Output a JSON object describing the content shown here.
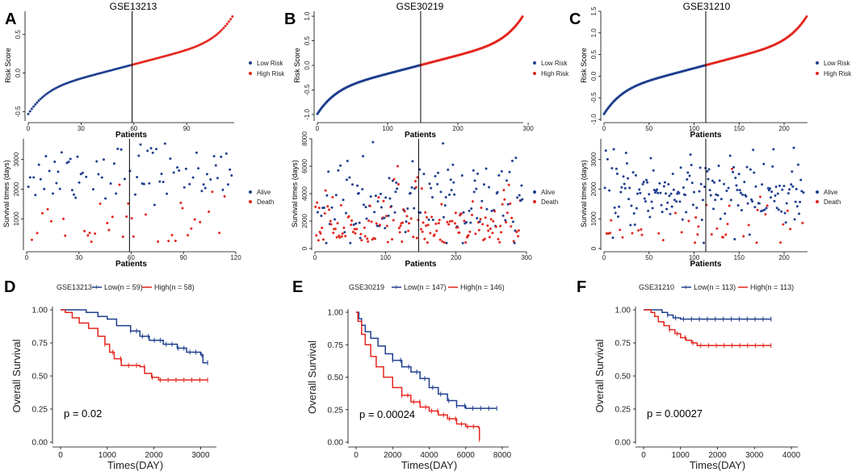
{
  "colors": {
    "low": "#1f3f8f",
    "high": "#e3261e",
    "line": "#000000"
  },
  "chart_data": [
    {
      "id": "A",
      "type": "scatter",
      "panel_label": "A",
      "title": "GSE13213",
      "xlabel": "Patients",
      "ylabel": "Risk Score",
      "n": 117,
      "cut": 59,
      "xlim": [
        0,
        117
      ],
      "ylim": [
        -0.6,
        0.8
      ],
      "xticks": [
        "0",
        "30",
        "60",
        "90"
      ],
      "yticks": [
        "-0.5",
        "0.0",
        "0.5"
      ],
      "legend": [
        "Low Risk",
        "High Risk"
      ]
    },
    {
      "id": "B",
      "type": "scatter",
      "panel_label": "B",
      "title": "GSE30219",
      "xlabel": "Patients",
      "ylabel": "Risk Score",
      "n": 293,
      "cut": 147,
      "xlim": [
        0,
        293
      ],
      "ylim": [
        -1.1,
        1.1
      ],
      "xticks": [
        "0",
        "100",
        "200",
        "300"
      ],
      "yticks": [
        "-1.0",
        "-0.5",
        "0.0",
        "0.5",
        "1.0"
      ],
      "legend": [
        "Low Risk",
        "High Risk"
      ]
    },
    {
      "id": "C",
      "type": "scatter",
      "panel_label": "C",
      "title": "GSE31210",
      "xlabel": "Patients",
      "ylabel": "Risk Score",
      "n": 226,
      "cut": 113,
      "xlim": [
        0,
        226
      ],
      "ylim": [
        -1.0,
        1.5
      ],
      "xticks": [
        "0",
        "50",
        "100",
        "150",
        "200"
      ],
      "yticks": [
        "-1.0",
        "-0.5",
        "0.0",
        "0.5",
        "1.0",
        "1.5"
      ],
      "legend": [
        "Low Risk",
        "High Risk"
      ]
    },
    {
      "id": "A2",
      "type": "scatter",
      "xlabel": "Patients",
      "ylabel": "Survival times (days)",
      "n": 117,
      "cut": 59,
      "xlim": [
        0,
        120
      ],
      "ylim": [
        0,
        3700
      ],
      "xticks": [
        "0",
        "30",
        "60",
        "90",
        "120"
      ],
      "yticks": [
        "1000",
        "2000",
        "3000"
      ],
      "legend": [
        "Alive",
        "Death"
      ],
      "alive_mean": 2600,
      "alive_sd": 500,
      "death_frac": 0.35
    },
    {
      "id": "B2",
      "type": "scatter",
      "xlabel": "Patients",
      "ylabel": "Survival times (days)",
      "n": 293,
      "cut": 147,
      "xlim": [
        0,
        300
      ],
      "ylim": [
        0,
        8000
      ],
      "xticks": [
        "0",
        "100",
        "200",
        "300"
      ],
      "yticks": [
        "0",
        "2000",
        "4000",
        "6000",
        "8000"
      ],
      "legend": [
        "Alive",
        "Death"
      ],
      "alive_mean": 3500,
      "alive_sd": 1500,
      "death_frac": 0.55
    },
    {
      "id": "C2",
      "type": "scatter",
      "xlabel": "Patients",
      "ylabel": "Survival times (days)",
      "n": 226,
      "cut": 113,
      "xlim": [
        0,
        226
      ],
      "ylim": [
        0,
        3700
      ],
      "xticks": [
        "0",
        "50",
        "100",
        "150",
        "200"
      ],
      "yticks": [
        "0",
        "1000",
        "2000",
        "3000"
      ],
      "legend": [
        "Alive",
        "Death"
      ],
      "alive_mean": 1900,
      "alive_sd": 600,
      "death_frac": 0.15
    },
    {
      "id": "D",
      "type": "line",
      "panel_label": "D",
      "title": "GSE13213",
      "legend": [
        "Low(n = 59)",
        "High(n = 58)"
      ],
      "xlabel": "Times(DAY)",
      "ylabel": "Overall Survival",
      "xlim": [
        0,
        3200
      ],
      "ylim": [
        0,
        1
      ],
      "xticks": [
        "0",
        "1000",
        "2000",
        "3000"
      ],
      "yticks": [
        "0.00",
        "0.25",
        "0.50",
        "0.75",
        "1.00"
      ],
      "pvalue": "p = 0.02",
      "series": [
        {
          "name": "Low",
          "points": [
            [
              0,
              1
            ],
            [
              300,
              1
            ],
            [
              550,
              0.98
            ],
            [
              800,
              0.95
            ],
            [
              1000,
              0.93
            ],
            [
              1200,
              0.88
            ],
            [
              1500,
              0.84
            ],
            [
              1700,
              0.8
            ],
            [
              1900,
              0.77
            ],
            [
              2200,
              0.74
            ],
            [
              2500,
              0.71
            ],
            [
              2700,
              0.68
            ],
            [
              3000,
              0.66
            ],
            [
              3050,
              0.6
            ],
            [
              3150,
              0.6
            ]
          ]
        },
        {
          "name": "High",
          "points": [
            [
              0,
              1
            ],
            [
              100,
              0.98
            ],
            [
              250,
              0.94
            ],
            [
              400,
              0.9
            ],
            [
              600,
              0.86
            ],
            [
              800,
              0.8
            ],
            [
              950,
              0.74
            ],
            [
              1050,
              0.68
            ],
            [
              1150,
              0.63
            ],
            [
              1300,
              0.58
            ],
            [
              1700,
              0.57
            ],
            [
              1800,
              0.52
            ],
            [
              1950,
              0.49
            ],
            [
              2100,
              0.47
            ],
            [
              3150,
              0.47
            ]
          ]
        }
      ]
    },
    {
      "id": "E",
      "type": "line",
      "panel_label": "E",
      "title": "GSE30219",
      "legend": [
        "Low(n = 147)",
        "High(n = 146)"
      ],
      "xlabel": "Times(DAY)",
      "ylabel": "Overall Survival",
      "xlim": [
        0,
        8000
      ],
      "ylim": [
        0,
        1
      ],
      "xticks": [
        "0",
        "2000",
        "4000",
        "6000",
        "8000"
      ],
      "yticks": [
        "0.00",
        "0.25",
        "0.50",
        "0.75",
        "1.00"
      ],
      "pvalue": "p = 0.00024",
      "series": [
        {
          "name": "Low",
          "points": [
            [
              0,
              1
            ],
            [
              150,
              0.95
            ],
            [
              300,
              0.9
            ],
            [
              500,
              0.85
            ],
            [
              800,
              0.8
            ],
            [
              1200,
              0.74
            ],
            [
              1600,
              0.68
            ],
            [
              2000,
              0.63
            ],
            [
              2500,
              0.58
            ],
            [
              3000,
              0.54
            ],
            [
              3500,
              0.49
            ],
            [
              4000,
              0.42
            ],
            [
              4500,
              0.37
            ],
            [
              5000,
              0.32
            ],
            [
              5500,
              0.28
            ],
            [
              6000,
              0.26
            ],
            [
              7700,
              0.26
            ]
          ]
        },
        {
          "name": "High",
          "points": [
            [
              0,
              1
            ],
            [
              100,
              0.93
            ],
            [
              300,
              0.83
            ],
            [
              500,
              0.75
            ],
            [
              800,
              0.66
            ],
            [
              1100,
              0.58
            ],
            [
              1500,
              0.5
            ],
            [
              2000,
              0.42
            ],
            [
              2500,
              0.36
            ],
            [
              3000,
              0.31
            ],
            [
              3500,
              0.27
            ],
            [
              4000,
              0.24
            ],
            [
              4500,
              0.21
            ],
            [
              5000,
              0.18
            ],
            [
              5500,
              0.14
            ],
            [
              6000,
              0.12
            ],
            [
              6700,
              0.11
            ],
            [
              6750,
              0.02
            ]
          ]
        }
      ]
    },
    {
      "id": "F",
      "type": "line",
      "panel_label": "F",
      "title": "GSE31210",
      "legend": [
        "Low(n = 113)",
        "High(n = 113)"
      ],
      "xlabel": "Times(DAY)",
      "ylabel": "Overall Survival",
      "xlim": [
        0,
        4000
      ],
      "ylim": [
        0,
        1
      ],
      "xticks": [
        "0",
        "1000",
        "2000",
        "3000",
        "4000"
      ],
      "yticks": [
        "0.00",
        "0.25",
        "0.50",
        "0.75",
        "1.00"
      ],
      "pvalue": "p = 0.00027",
      "series": [
        {
          "name": "Low",
          "points": [
            [
              0,
              1
            ],
            [
              400,
              1
            ],
            [
              500,
              0.98
            ],
            [
              650,
              0.96
            ],
            [
              800,
              0.94
            ],
            [
              1000,
              0.93
            ],
            [
              3450,
              0.93
            ]
          ]
        },
        {
          "name": "High",
          "points": [
            [
              0,
              1
            ],
            [
              200,
              0.98
            ],
            [
              300,
              0.95
            ],
            [
              400,
              0.91
            ],
            [
              550,
              0.88
            ],
            [
              700,
              0.85
            ],
            [
              850,
              0.82
            ],
            [
              1000,
              0.79
            ],
            [
              1150,
              0.77
            ],
            [
              1300,
              0.75
            ],
            [
              1450,
              0.73
            ],
            [
              3450,
              0.73
            ]
          ]
        }
      ]
    }
  ]
}
